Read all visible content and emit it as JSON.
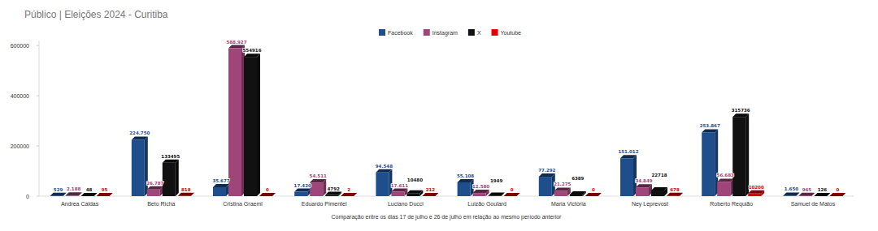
{
  "chart_data": {
    "type": "bar",
    "title": "Público | Eleições 2024 - Curitiba",
    "x_label": "Comparação entre os dias 17 de julho e 26 de julho em relação ao mesmo período anterior",
    "categories": [
      "Andrea Caldas",
      "Beto Richa",
      "Cristina Graeml",
      "Eduardo Pimentel",
      "Luciano Ducci",
      "Luizão Goulard",
      "Maria Victória",
      "Ney Leprevost",
      "Roberto Requião",
      "Samuel de Matos"
    ],
    "series": [
      {
        "name": "Facebook",
        "color": "#1f4e8c",
        "values": [
          529,
          224750,
          35677,
          17420,
          94548,
          55108,
          77292,
          151012,
          253867,
          1650
        ],
        "value_labels": [
          "529",
          "224.750",
          "35.677",
          "17.420",
          "94.548",
          "55.108",
          "77.292",
          "151.012",
          "253.867",
          "1.650"
        ]
      },
      {
        "name": "Instagram",
        "color": "#a0457a",
        "values": [
          2188,
          26787,
          588927,
          54511,
          17611,
          12580,
          21275,
          34849,
          56683,
          965
        ],
        "value_labels": [
          "2.188",
          "26.787",
          "588.927",
          "54.511",
          "17.611",
          "12.580",
          "21.275",
          "34.849",
          "56.683",
          "965"
        ]
      },
      {
        "name": "X",
        "color": "#111111",
        "values": [
          48,
          133495,
          554916,
          4792,
          10480,
          1949,
          6389,
          22718,
          315736,
          126
        ]
      },
      {
        "name": "Youtube",
        "color": "#e00000",
        "values": [
          95,
          818,
          0,
          2,
          212,
          0,
          0,
          678,
          10200,
          0
        ]
      }
    ],
    "ylim": [
      0,
      620000
    ],
    "yticks": [
      0,
      200000,
      400000,
      600000
    ],
    "grid": false,
    "legend": "top",
    "data_labels": true
  }
}
